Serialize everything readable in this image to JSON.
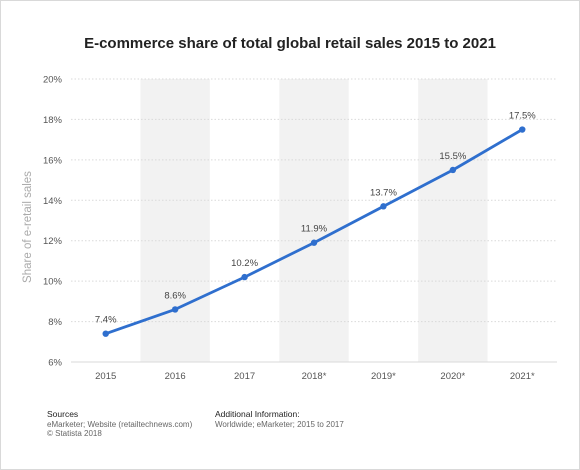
{
  "chart_data": {
    "type": "line",
    "title": "E-commerce share of total global retail sales 2015 to 2021",
    "xlabel": "",
    "ylabel": "Share of e-retail sales",
    "categories": [
      "2015",
      "2016",
      "2017",
      "2018*",
      "2019*",
      "2020*",
      "2021*"
    ],
    "series": [
      {
        "name": "",
        "values": [
          7.4,
          8.6,
          10.2,
          11.9,
          13.7,
          15.5,
          17.5
        ]
      }
    ],
    "data_labels": [
      "7.4%",
      "8.6%",
      "10.2%",
      "11.9%",
      "13.7%",
      "15.5%",
      "17.5%"
    ],
    "ylim": [
      6,
      20
    ],
    "yticks": [
      6,
      8,
      10,
      12,
      14,
      16,
      18,
      20
    ],
    "ytick_labels": [
      "6%",
      "8%",
      "10%",
      "12%",
      "14%",
      "16%",
      "18%",
      "20%"
    ],
    "grid": true,
    "line_color": "#2f6fce",
    "band_color": "#f2f2f2",
    "grid_color": "#d9d9d9"
  },
  "footer": {
    "sources_heading": "Sources",
    "sources_line1": "eMarketer; Website (retailtechnews.com)",
    "sources_line2": "© Statista 2018",
    "additional_heading": "Additional Information:",
    "additional_line1": "Worldwide; eMarketer; 2015 to 2017"
  }
}
